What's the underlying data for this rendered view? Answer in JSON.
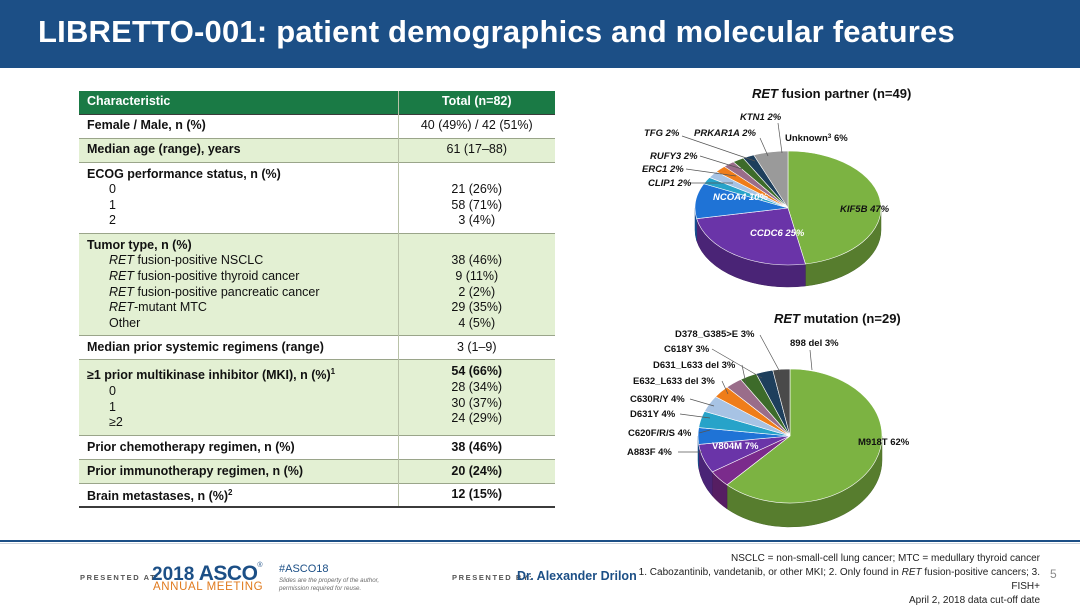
{
  "title": "LIBRETTO-001: patient demographics and molecular features",
  "table": {
    "header": [
      "Characteristic",
      "Total (n=82)"
    ],
    "female_male": {
      "label": "Female / Male, n (%)",
      "value": "40 (49%) / 42 (51%)"
    },
    "median_age": {
      "label": "Median age (range), years",
      "value": "61 (17–88)"
    },
    "ecog": {
      "label": "ECOG performance status, n (%)",
      "rows": [
        {
          "label": "0",
          "value": "21 (26%)"
        },
        {
          "label": "1",
          "value": "58 (71%)"
        },
        {
          "label": "2",
          "value": "3 (4%)"
        }
      ]
    },
    "tumor": {
      "label": "Tumor type, n (%)",
      "rows": [
        {
          "em": "RET",
          "rest": " fusion-positive NSCLC",
          "value": "38 (46%)"
        },
        {
          "em": "RET",
          "rest": " fusion-positive thyroid cancer",
          "value": "9 (11%)"
        },
        {
          "em": "RET",
          "rest": " fusion-positive pancreatic cancer",
          "value": "2 (2%)"
        },
        {
          "em": "RET",
          "rest": "-mutant MTC",
          "value": "29 (35%)"
        },
        {
          "em": "",
          "rest": "Other",
          "value": "4 (5%)"
        }
      ]
    },
    "prior_regimens": {
      "label": "Median prior systemic regimens (range)",
      "value": "3 (1–9)"
    },
    "mki": {
      "label": "≥1 prior multikinase inhibitor (MKI), n (%)",
      "sup": "1",
      "value": "54 (66%)",
      "rows": [
        {
          "label": "0",
          "value": "28 (34%)"
        },
        {
          "label": "1",
          "value": "30 (37%)"
        },
        {
          "label": "≥2",
          "value": "24 (29%)"
        }
      ]
    },
    "chemo": {
      "label": "Prior chemotherapy regimen, n (%)",
      "value": "38 (46%)"
    },
    "immuno": {
      "label": "Prior immunotherapy regimen, n (%)",
      "value": "20 (24%)"
    },
    "brain": {
      "label": "Brain metastases, n (%)",
      "sup": "2",
      "value": "12 (15%)"
    }
  },
  "chart_data": [
    {
      "type": "pie",
      "title_em": "RET",
      "title_rest": " fusion partner (n=49)",
      "slices": [
        {
          "label": "KIF5B",
          "value": 47,
          "text": "KIF5B 47%",
          "color": "#7cb342"
        },
        {
          "label": "CCDC6",
          "value": 25,
          "text": "CCDC6 25%",
          "color": "#6a34a8"
        },
        {
          "label": "NCOA4",
          "value": 10,
          "text": "NCOA4 10%",
          "color": "#1f73d6"
        },
        {
          "label": "CLIP1",
          "value": 2,
          "text": "CLIP1 2%",
          "color": "#27a3c9"
        },
        {
          "label": "ERC1",
          "value": 2,
          "text": "ERC1 2%",
          "color": "#a7c3e4"
        },
        {
          "label": "RUFY3",
          "value": 2,
          "text": "RUFY3 2%",
          "color": "#ef7d1a"
        },
        {
          "label": "TFG",
          "value": 2,
          "text": "TFG 2%",
          "color": "#9a6d8a"
        },
        {
          "label": "PRKAR1A",
          "value": 2,
          "text": "PRKAR1A 2%",
          "color": "#3d6b2a"
        },
        {
          "label": "KTN1",
          "value": 2,
          "text": "KTN1 2%",
          "color": "#1e3f5c"
        },
        {
          "label": "Unknown",
          "value": 6,
          "text": "Unknown",
          "sup": "3",
          "text2": " 6%",
          "color": "#9a9a9a"
        }
      ]
    },
    {
      "type": "pie",
      "title_em": "RET",
      "title_rest": " mutation (n=29)",
      "slices": [
        {
          "label": "M918T",
          "value": 62,
          "text": "M918T 62%",
          "color": "#7cb342"
        },
        {
          "label": "A883F",
          "value": 4,
          "text": "A883F 4%",
          "color": "#7b2b8c"
        },
        {
          "label": "V804M",
          "value": 7,
          "text": "V804M 7%",
          "color": "#6a34a8"
        },
        {
          "label": "C620F/R/S",
          "value": 4,
          "text": "C620F/R/S 4%",
          "color": "#1f73d6"
        },
        {
          "label": "D631Y",
          "value": 4,
          "text": "D631Y 4%",
          "color": "#27a3c9"
        },
        {
          "label": "C630R/Y",
          "value": 4,
          "text": "C630R/Y 4%",
          "color": "#a7c3e4"
        },
        {
          "label": "E632_L633 del",
          "value": 3,
          "text": "E632_L633 del 3%",
          "color": "#ef7d1a"
        },
        {
          "label": "D631_L633 del",
          "value": 3,
          "text": "D631_L633 del 3%",
          "color": "#9a6d8a"
        },
        {
          "label": "C618Y",
          "value": 3,
          "text": "C618Y 3%",
          "color": "#3d6b2a"
        },
        {
          "label": "D378_G385>E",
          "value": 3,
          "text": "D378_G385>E 3%",
          "color": "#1e3f5c"
        },
        {
          "label": "898 del",
          "value": 3,
          "text": "898 del 3%",
          "color": "#4a4a4a"
        }
      ]
    }
  ],
  "footer": {
    "presented_at": "PRESENTED AT:",
    "asco_year": "2018",
    "asco_brand": "ASCO",
    "asco_tm": "®",
    "asco_sub": "ANNUAL MEETING",
    "hashtag": "#ASCO18",
    "asco_note": "Slides are the property of the author, permission required for reuse.",
    "presented_by": "PRESENTED BY:",
    "presenter": "Dr. Alexander Drilon",
    "note_line1": "NSCLC = non-small-cell lung cancer; MTC = medullary thyroid cancer",
    "note_line2_a": "1. Cabozantinib, vandetanib, or other MKI; 2. Only found in ",
    "note_line2_em": "RET",
    "note_line2_b": " fusion-positive cancers; 3. FISH+",
    "note_line3": "April 2, 2018 data cut-off date",
    "page": "5"
  }
}
